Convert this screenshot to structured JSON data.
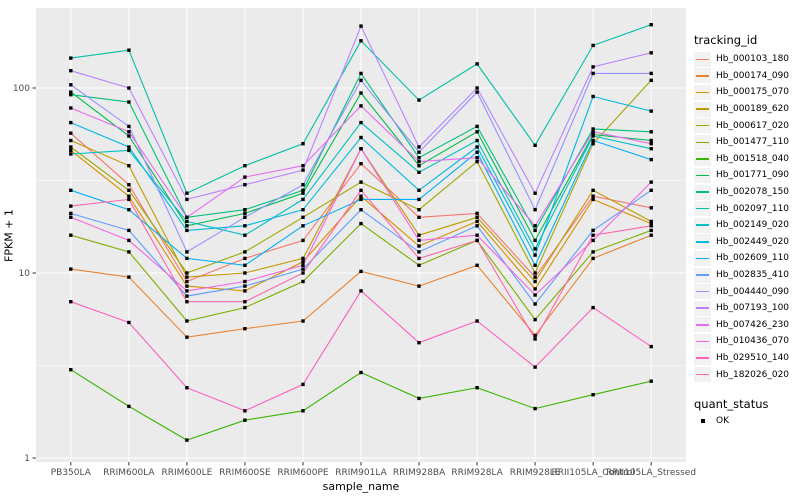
{
  "figure": {
    "page_bg": "#FFFFFF",
    "panel_bg": "#EBEBEB",
    "grid_color": "#FFFFFF",
    "axis_text_color": "#4D4D4D",
    "tick_color": "#333333",
    "point_color": "#000000",
    "legend_key_bg": "#F2F2F2"
  },
  "chart_data": {
    "type": "line",
    "title": "",
    "xlabel": "sample_name",
    "ylabel": "FPKM + 1",
    "y_scale": "log10",
    "y_ticks": [
      1,
      10,
      100
    ],
    "ylim": [
      0.95,
      270
    ],
    "grid": true,
    "legend_position": "right",
    "point_shape": "square",
    "categories": [
      "PB350LA",
      "RRIM600LA",
      "RRIM600LE",
      "RRIM600SE",
      "RRIM600PE",
      "RRIM901LA",
      "RRIM928BA",
      "RRIM928LA",
      "RRIM928LE",
      "RRII105LA_Control",
      "RRII105LA_Stressed"
    ],
    "series": [
      {
        "name": "Hb_000103_180",
        "color": "#F8766D",
        "values": [
          57,
          30,
          9,
          12,
          15,
          39,
          20,
          21,
          9.5,
          26,
          22.5
        ]
      },
      {
        "name": "Hb_000174_090",
        "color": "#EA8331",
        "values": [
          10.5,
          9.5,
          4.5,
          5,
          5.5,
          10.2,
          8.5,
          11,
          4.6,
          12,
          16
        ]
      },
      {
        "name": "Hb_000175_070",
        "color": "#D89000",
        "values": [
          46,
          26,
          8.5,
          8,
          11.5,
          26,
          14,
          19,
          8.2,
          25,
          18.5
        ]
      },
      {
        "name": "Hb_000189_620",
        "color": "#C09B00",
        "values": [
          52,
          38,
          9.5,
          10,
          12,
          47,
          16,
          20,
          9,
          28,
          19
        ]
      },
      {
        "name": "Hb_000617_020",
        "color": "#A3A500",
        "values": [
          48,
          28,
          10,
          13,
          20,
          31,
          22,
          40,
          10,
          50,
          110
        ]
      },
      {
        "name": "Hb_001477_110",
        "color": "#7CAE00",
        "values": [
          16,
          13,
          5.5,
          6.5,
          9,
          18.5,
          11,
          15,
          5.6,
          13,
          17
        ]
      },
      {
        "name": "Hb_001518_040",
        "color": "#39B600",
        "values": [
          3,
          1.9,
          1.25,
          1.6,
          1.8,
          2.9,
          2.1,
          2.4,
          1.85,
          2.2,
          2.6
        ]
      },
      {
        "name": "Hb_001771_090",
        "color": "#00BB4E",
        "values": [
          95,
          55,
          18,
          21,
          27,
          94,
          38,
          58,
          15,
          56,
          52
        ]
      },
      {
        "name": "Hb_002078_150",
        "color": "#00BF7D",
        "values": [
          92,
          84,
          20,
          22,
          28,
          120,
          42,
          62,
          17,
          60,
          58
        ]
      },
      {
        "name": "Hb_002097_110",
        "color": "#00C1A3",
        "values": [
          145,
          160,
          27,
          38,
          50,
          180,
          86,
          135,
          49,
          170,
          220
        ]
      },
      {
        "name": "Hb_002149_020",
        "color": "#00BFC4",
        "values": [
          44,
          46,
          19,
          16,
          25,
          65,
          35,
          52,
          13.5,
          55,
          47
        ]
      },
      {
        "name": "Hb_002449_020",
        "color": "#00BAE0",
        "values": [
          65,
          48,
          17,
          18,
          22,
          54,
          28,
          48,
          12.5,
          90,
          75
        ]
      },
      {
        "name": "Hb_002609_110",
        "color": "#00B0F6",
        "values": [
          28,
          22,
          12,
          11,
          18,
          25,
          25,
          45,
          11,
          52,
          41
        ]
      },
      {
        "name": "Hb_002835_410",
        "color": "#619CFF",
        "values": [
          21,
          17,
          7.5,
          8.5,
          10.5,
          22,
          13,
          18,
          6.8,
          17,
          28
        ]
      },
      {
        "name": "Hb_004440_090",
        "color": "#9590FF",
        "values": [
          104,
          62,
          13,
          20,
          30,
          110,
          45,
          95,
          22,
          120,
          120
        ]
      },
      {
        "name": "Hb_007193_100",
        "color": "#B983FF",
        "values": [
          124,
          100,
          25,
          30,
          36,
          216,
          48,
          100,
          27,
          130,
          155
        ]
      },
      {
        "name": "Hb_007426_230",
        "color": "#E76BF3",
        "values": [
          78,
          58,
          20,
          33,
          38,
          80,
          40,
          42,
          18,
          58,
          50
        ]
      },
      {
        "name": "Hb_010436_070",
        "color": "#F564E3",
        "values": [
          20,
          15,
          8,
          9,
          11,
          47,
          15,
          16,
          7.6,
          15,
          31
        ]
      },
      {
        "name": "Hb_029510_140",
        "color": "#FD61C1",
        "values": [
          7,
          5.4,
          2.4,
          1.8,
          2.5,
          8,
          4.2,
          5.5,
          3.1,
          6.5,
          4
        ]
      },
      {
        "name": "Hb_182026_020",
        "color": "#FF65AC",
        "values": [
          23,
          25,
          7,
          7,
          10,
          28,
          12,
          15,
          4.4,
          16,
          18
        ]
      }
    ],
    "legend": {
      "color_title": "tracking_id",
      "shape_title": "quant_status",
      "shape_items": [
        {
          "label": "OK"
        }
      ]
    }
  }
}
